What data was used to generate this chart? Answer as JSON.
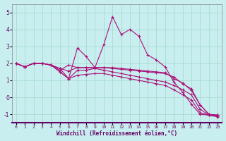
{
  "background_color": "#c8eef0",
  "grid_color": "#a0d8c8",
  "line_color": "#aa1177",
  "marker": "+",
  "xlim": [
    -0.5,
    23.5
  ],
  "ylim": [
    -1.5,
    5.5
  ],
  "yticks": [
    -1,
    0,
    1,
    2,
    3,
    4,
    5
  ],
  "xticks": [
    0,
    1,
    2,
    3,
    4,
    5,
    6,
    7,
    8,
    9,
    10,
    11,
    12,
    13,
    14,
    15,
    16,
    17,
    18,
    19,
    20,
    21,
    22,
    23
  ],
  "xlabel": "Windchill (Refroidissement éolien,°C)",
  "series": [
    [
      2.0,
      1.8,
      2.0,
      2.0,
      1.9,
      1.7,
      1.1,
      2.9,
      2.4,
      1.75,
      3.1,
      4.75,
      3.7,
      4.0,
      3.6,
      2.5,
      2.2,
      1.8,
      0.9,
      0.3,
      -0.4,
      -1.0,
      -1.05,
      -1.05
    ],
    [
      2.0,
      1.8,
      2.0,
      2.0,
      1.9,
      1.7,
      1.55,
      1.75,
      1.75,
      1.75,
      1.75,
      1.7,
      1.65,
      1.6,
      1.55,
      1.5,
      1.45,
      1.4,
      1.2,
      0.8,
      0.5,
      -0.45,
      -1.0,
      -1.05
    ],
    [
      2.0,
      1.8,
      2.0,
      2.0,
      1.9,
      1.6,
      1.9,
      1.75,
      1.75,
      1.75,
      1.75,
      1.75,
      1.7,
      1.65,
      1.6,
      1.55,
      1.5,
      1.45,
      1.1,
      0.85,
      0.4,
      -0.45,
      -1.0,
      -1.05
    ],
    [
      2.0,
      1.8,
      2.0,
      2.0,
      1.9,
      1.5,
      1.1,
      1.6,
      1.6,
      1.7,
      1.6,
      1.5,
      1.4,
      1.3,
      1.2,
      1.1,
      1.0,
      0.9,
      0.7,
      0.45,
      0.15,
      -0.7,
      -1.05,
      -1.1
    ],
    [
      2.0,
      1.8,
      2.0,
      2.0,
      1.9,
      1.5,
      1.1,
      1.3,
      1.35,
      1.4,
      1.4,
      1.3,
      1.2,
      1.1,
      1.0,
      0.9,
      0.8,
      0.7,
      0.45,
      0.15,
      -0.15,
      -0.9,
      -1.05,
      -1.15
    ]
  ]
}
